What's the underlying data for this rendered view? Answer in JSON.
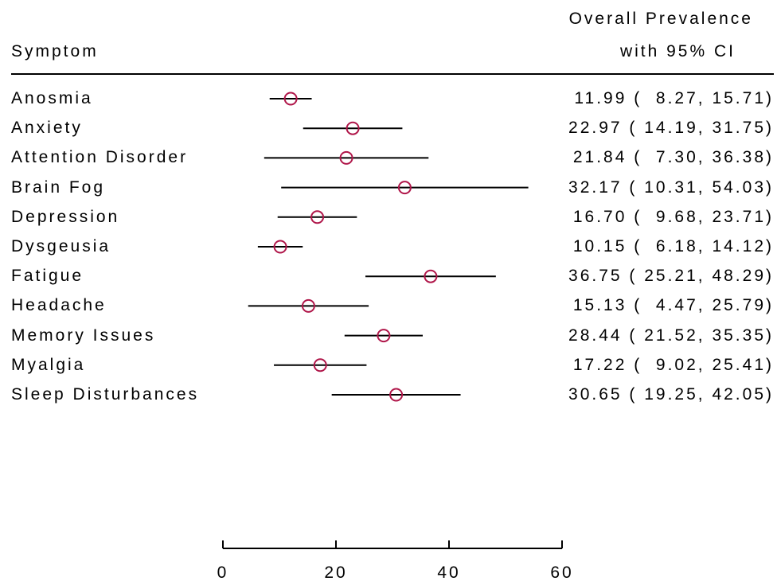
{
  "header": {
    "symptom": "Symptom",
    "prevalence_line1": "Overall Prevalence",
    "prevalence_line2": "with 95% CI"
  },
  "chart_data": {
    "type": "forest",
    "xlim": [
      0,
      60
    ],
    "xticks": [
      0,
      20,
      40,
      60
    ],
    "marker_color": "#b0174a",
    "line_color": "#000000",
    "rows": [
      {
        "label": "Anosmia",
        "estimate": 11.99,
        "lower": 8.27,
        "upper": 15.71,
        "text": "11.99 (  8.27, 15.71)"
      },
      {
        "label": "Anxiety",
        "estimate": 22.97,
        "lower": 14.19,
        "upper": 31.75,
        "text": "22.97 ( 14.19, 31.75)"
      },
      {
        "label": "Attention Disorder",
        "estimate": 21.84,
        "lower": 7.3,
        "upper": 36.38,
        "text": "21.84 (  7.30, 36.38)"
      },
      {
        "label": "Brain Fog",
        "estimate": 32.17,
        "lower": 10.31,
        "upper": 54.03,
        "text": "32.17 ( 10.31, 54.03)"
      },
      {
        "label": "Depression",
        "estimate": 16.7,
        "lower": 9.68,
        "upper": 23.71,
        "text": "16.70 (  9.68, 23.71)"
      },
      {
        "label": "Dysgeusia",
        "estimate": 10.15,
        "lower": 6.18,
        "upper": 14.12,
        "text": "10.15 (  6.18, 14.12)"
      },
      {
        "label": "Fatigue",
        "estimate": 36.75,
        "lower": 25.21,
        "upper": 48.29,
        "text": "36.75 ( 25.21, 48.29)"
      },
      {
        "label": "Headache",
        "estimate": 15.13,
        "lower": 4.47,
        "upper": 25.79,
        "text": "15.13 (  4.47, 25.79)"
      },
      {
        "label": "Memory Issues",
        "estimate": 28.44,
        "lower": 21.52,
        "upper": 35.35,
        "text": "28.44 ( 21.52, 35.35)"
      },
      {
        "label": "Myalgia",
        "estimate": 17.22,
        "lower": 9.02,
        "upper": 25.41,
        "text": "17.22 (  9.02, 25.41)"
      },
      {
        "label": "Sleep Disturbances",
        "estimate": 30.65,
        "lower": 19.25,
        "upper": 42.05,
        "text": "30.65 ( 19.25, 42.05)"
      }
    ]
  }
}
